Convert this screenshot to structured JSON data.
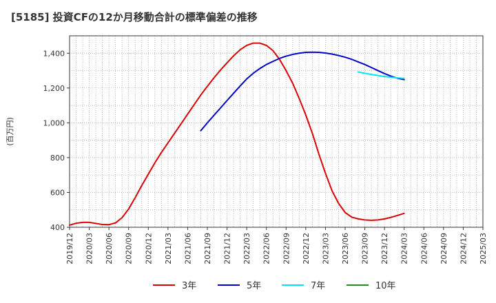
{
  "title": "[5185]  投資CFの12か月移動合計の標準偏差の推移",
  "chart_data": {
    "type": "line",
    "ylabel": "(百万円)",
    "xlabel": "",
    "ylim": [
      400,
      1500
    ],
    "yticks": [
      400,
      600,
      800,
      1000,
      1200,
      1400
    ],
    "ytick_labels": [
      "400",
      "600",
      "800",
      "1,000",
      "1,200",
      "1,400"
    ],
    "xlim": [
      "2019-12",
      "2025-03"
    ],
    "xtick_labels": [
      "2019/12",
      "2020/03",
      "2020/06",
      "2020/09",
      "2020/12",
      "2021/03",
      "2021/06",
      "2021/09",
      "2021/12",
      "2022/03",
      "2022/06",
      "2022/09",
      "2022/12",
      "2023/03",
      "2023/06",
      "2023/09",
      "2023/12",
      "2024/03",
      "2024/06",
      "2024/09",
      "2024/12",
      "2025/03"
    ],
    "grid": true,
    "legend_position": "bottom",
    "series": [
      {
        "name": "3年",
        "color": "#dd0000",
        "points": [
          [
            "2019-12",
            412
          ],
          [
            "2020-01",
            423
          ],
          [
            "2020-02",
            428
          ],
          [
            "2020-03",
            428
          ],
          [
            "2020-04",
            422
          ],
          [
            "2020-05",
            416
          ],
          [
            "2020-06",
            415
          ],
          [
            "2020-07",
            425
          ],
          [
            "2020-08",
            455
          ],
          [
            "2020-09",
            505
          ],
          [
            "2020-10",
            570
          ],
          [
            "2020-11",
            640
          ],
          [
            "2020-12",
            705
          ],
          [
            "2021-01",
            770
          ],
          [
            "2021-02",
            830
          ],
          [
            "2021-03",
            885
          ],
          [
            "2021-04",
            940
          ],
          [
            "2021-05",
            995
          ],
          [
            "2021-06",
            1050
          ],
          [
            "2021-07",
            1105
          ],
          [
            "2021-08",
            1160
          ],
          [
            "2021-09",
            1210
          ],
          [
            "2021-10",
            1258
          ],
          [
            "2021-11",
            1303
          ],
          [
            "2021-12",
            1345
          ],
          [
            "2022-01",
            1385
          ],
          [
            "2022-02",
            1420
          ],
          [
            "2022-03",
            1445
          ],
          [
            "2022-04",
            1458
          ],
          [
            "2022-05",
            1458
          ],
          [
            "2022-06",
            1445
          ],
          [
            "2022-07",
            1415
          ],
          [
            "2022-08",
            1365
          ],
          [
            "2022-09",
            1300
          ],
          [
            "2022-10",
            1228
          ],
          [
            "2022-11",
            1140
          ],
          [
            "2022-12",
            1045
          ],
          [
            "2023-01",
            940
          ],
          [
            "2023-02",
            820
          ],
          [
            "2023-03",
            710
          ],
          [
            "2023-04",
            610
          ],
          [
            "2023-05",
            537
          ],
          [
            "2023-06",
            485
          ],
          [
            "2023-07",
            458
          ],
          [
            "2023-08",
            448
          ],
          [
            "2023-09",
            442
          ],
          [
            "2023-10",
            440
          ],
          [
            "2023-11",
            442
          ],
          [
            "2023-12",
            448
          ],
          [
            "2024-01",
            457
          ],
          [
            "2024-02",
            468
          ],
          [
            "2024-03",
            480
          ]
        ]
      },
      {
        "name": "5年",
        "color": "#0000cc",
        "points": [
          [
            "2021-08",
            955
          ],
          [
            "2021-09",
            1000
          ],
          [
            "2021-10",
            1043
          ],
          [
            "2021-11",
            1085
          ],
          [
            "2021-12",
            1128
          ],
          [
            "2022-01",
            1170
          ],
          [
            "2022-02",
            1212
          ],
          [
            "2022-03",
            1252
          ],
          [
            "2022-04",
            1285
          ],
          [
            "2022-05",
            1312
          ],
          [
            "2022-06",
            1335
          ],
          [
            "2022-07",
            1353
          ],
          [
            "2022-08",
            1370
          ],
          [
            "2022-09",
            1383
          ],
          [
            "2022-10",
            1393
          ],
          [
            "2022-11",
            1400
          ],
          [
            "2022-12",
            1405
          ],
          [
            "2023-01",
            1406
          ],
          [
            "2023-02",
            1405
          ],
          [
            "2023-03",
            1401
          ],
          [
            "2023-04",
            1395
          ],
          [
            "2023-05",
            1387
          ],
          [
            "2023-06",
            1377
          ],
          [
            "2023-07",
            1365
          ],
          [
            "2023-08",
            1350
          ],
          [
            "2023-09",
            1335
          ],
          [
            "2023-10",
            1318
          ],
          [
            "2023-11",
            1300
          ],
          [
            "2023-12",
            1283
          ],
          [
            "2024-01",
            1268
          ],
          [
            "2024-02",
            1256
          ],
          [
            "2024-03",
            1248
          ]
        ]
      },
      {
        "name": "7年",
        "color": "#00e5ee",
        "points": [
          [
            "2023-08",
            1292
          ],
          [
            "2023-09",
            1285
          ],
          [
            "2023-10",
            1278
          ],
          [
            "2023-11",
            1272
          ],
          [
            "2023-12",
            1266
          ],
          [
            "2024-01",
            1262
          ],
          [
            "2024-02",
            1258
          ],
          [
            "2024-03",
            1255
          ]
        ]
      },
      {
        "name": "10年",
        "color": "#228b22",
        "points": []
      }
    ]
  }
}
